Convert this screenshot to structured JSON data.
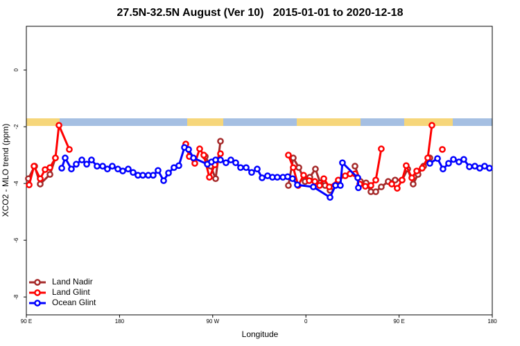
{
  "chart_data": {
    "type": "line",
    "title": "27.5N-32.5N August (Ver 10)   2015-01-01 to 2020-12-18",
    "x_label": "Longitude",
    "y_label": "XCO2 - MLO trend (ppm)",
    "xlim": [
      90,
      540
    ],
    "ylim": [
      -8.63,
      1.54
    ],
    "xticks": [
      {
        "value": 90,
        "label": "90 E"
      },
      180,
      {
        "value": 270,
        "label": "90 W"
      },
      {
        "value": 360,
        "label": "0"
      },
      {
        "value": 450,
        "label": "90 E"
      },
      {
        "value": 540,
        "label": "180"
      }
    ],
    "yticks": [
      0,
      -2,
      -4,
      -6,
      -8
    ],
    "legend": "bottom-left",
    "series": [
      {
        "name": "Land Nadir",
        "color": "#a52a2a",
        "x": [
          92.0,
          98.0,
          103.4,
          112.8,
          118.1,
          null,
          262.8,
          268.1,
          272.8,
          277.5,
          null,
          343.1,
          347.8,
          353.2,
          359.2,
          363.8,
          369.2,
          373.9,
          378.6,
          383.3,
          null,
          407.4,
          412.7,
          418.1,
          422.8,
          427.5,
          432.8,
          439.5,
          446.2,
          452.9,
          458.3,
          463.6,
          468.3,
          473.7,
          479.7
        ],
        "values": [
          -3.83,
          -3.39,
          -4.02,
          -3.68,
          -3.1,
          null,
          -3.05,
          -3.39,
          -3.83,
          -2.51,
          null,
          -4.07,
          -3.1,
          -3.44,
          -3.93,
          -3.78,
          -3.49,
          -3.98,
          -4.07,
          -4.24,
          null,
          -3.39,
          -3.93,
          -3.98,
          -4.29,
          -4.29,
          -4.12,
          -3.93,
          -3.88,
          -3.88,
          -3.49,
          -4.02,
          -3.68,
          -3.39,
          -3.1
        ]
      },
      {
        "name": "Land Glint",
        "color": "#ff0000",
        "x": [
          92.7,
          97.4,
          103.4,
          108.1,
          112.8,
          118.1,
          121.5,
          131.5,
          null,
          244.0,
          247.4,
          252.7,
          257.4,
          261.4,
          266.8,
          272.1,
          277.5,
          null,
          343.1,
          347.8,
          352.5,
          357.8,
          363.2,
          368.6,
          373.2,
          377.3,
          382.6,
          391.3,
          398.0,
          402.7,
          407.4,
          412.1,
          417.4,
          422.8,
          427.5,
          432.8,
          null,
          442.9,
          448.2,
          452.9,
          456.9,
          462.3,
          467.0,
          472.3,
          477.7,
          481.7,
          null,
          491.8
        ],
        "values": [
          -4.05,
          -3.39,
          -3.83,
          -3.51,
          -3.44,
          -3.1,
          -1.95,
          -2.8,
          null,
          -2.61,
          -3.05,
          -3.29,
          -2.78,
          -3.0,
          -3.78,
          -3.34,
          -2.95,
          null,
          -3.0,
          -3.44,
          -4.07,
          -3.71,
          -3.9,
          -3.93,
          -4.07,
          -3.83,
          -4.12,
          -3.88,
          -3.73,
          -3.66,
          -3.66,
          -4.02,
          -4.1,
          -4.07,
          -3.88,
          -2.78,
          null,
          -4.02,
          -4.17,
          -3.88,
          -3.37,
          -3.8,
          -3.56,
          -3.46,
          -3.1,
          -1.95,
          null,
          -2.8
        ]
      },
      {
        "name": "Ocean Glint",
        "color": "#0000ff",
        "x": [
          124.2,
          127.5,
          133.5,
          138.2,
          143.6,
          148.3,
          152.9,
          158.3,
          163.7,
          168.3,
          173.0,
          178.4,
          183.1,
          188.4,
          193.1,
          197.8,
          202.5,
          207.8,
          212.5,
          217.2,
          222.6,
          227.3,
          232.6,
          237.3,
          242.7,
          246.7,
          251.4,
          264.8,
          268.8,
          272.8,
          277.5,
          282.8,
          287.5,
          292.2,
          296.9,
          302.3,
          307.6,
          313.0,
          317.7,
          323.0,
          327.7,
          332.4,
          337.8,
          342.4,
          347.1,
          351.8,
          367.2,
          383.3,
          388.6,
          393.3,
          395.3,
          410.1,
          410.7,
          null,
          479.7,
          487.1,
          492.4,
          497.8,
          502.5,
          507.8,
          512.5,
          517.9,
          523.2,
          527.9,
          532.6,
          537.3
        ],
        "values": [
          -3.46,
          -3.1,
          -3.49,
          -3.32,
          -3.17,
          -3.32,
          -3.17,
          -3.39,
          -3.39,
          -3.49,
          -3.39,
          -3.49,
          -3.56,
          -3.49,
          -3.61,
          -3.71,
          -3.71,
          -3.71,
          -3.71,
          -3.54,
          -3.9,
          -3.63,
          -3.44,
          -3.37,
          -2.73,
          -2.8,
          -3.1,
          -3.32,
          -3.24,
          -3.17,
          -3.17,
          -3.27,
          -3.17,
          -3.27,
          -3.44,
          -3.44,
          -3.61,
          -3.49,
          -3.8,
          -3.73,
          -3.78,
          -3.78,
          -3.78,
          -3.76,
          -3.83,
          -4.05,
          -4.12,
          -4.49,
          -4.07,
          -4.07,
          -3.27,
          -3.8,
          -4.15,
          null,
          -3.29,
          -3.12,
          -3.49,
          -3.29,
          -3.15,
          -3.24,
          -3.15,
          -3.41,
          -3.39,
          -3.46,
          -3.39,
          -3.46
        ]
      }
    ]
  }
}
